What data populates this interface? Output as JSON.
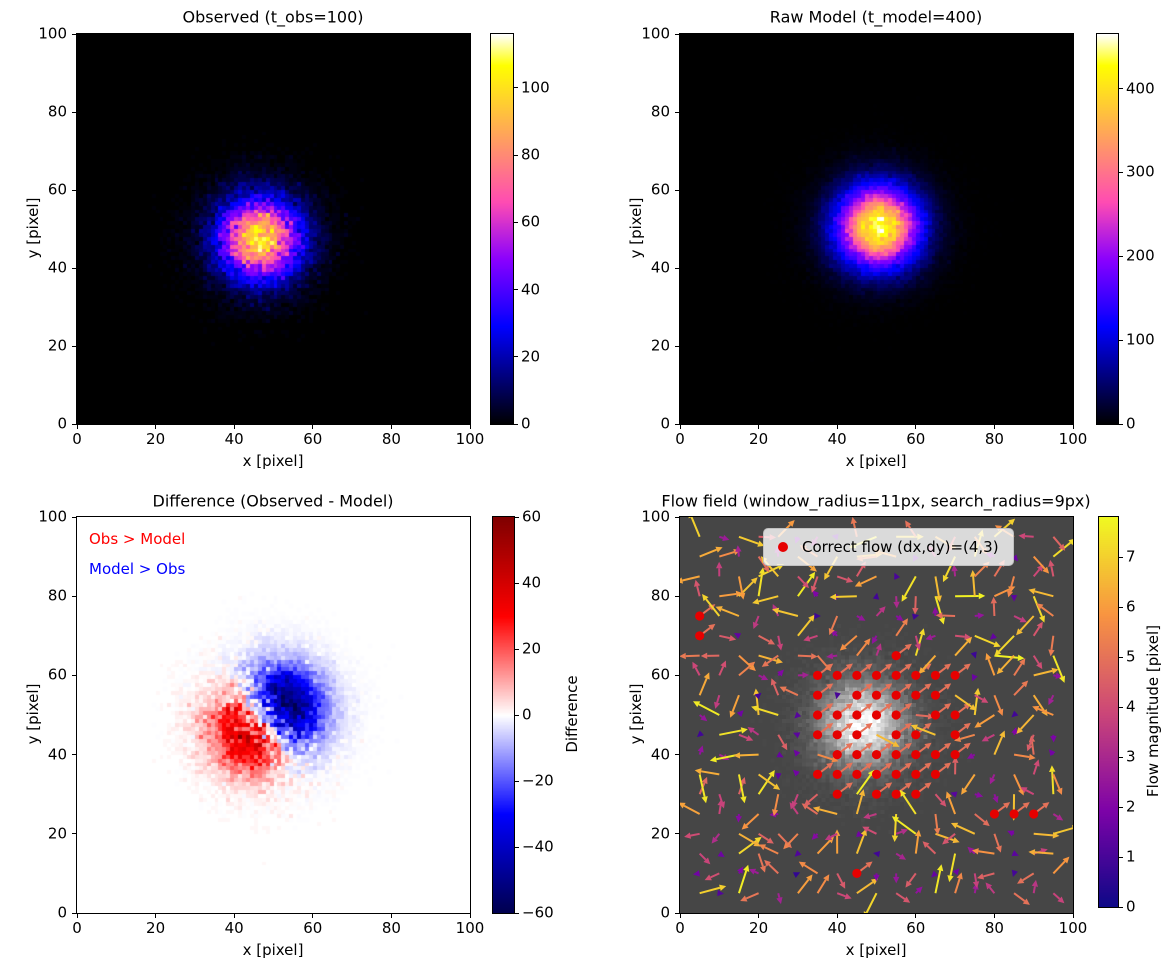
{
  "figure": {
    "background": "#ffffff"
  },
  "chart_data": [
    {
      "id": "observed",
      "type": "heatmap",
      "title": "Observed (t_obs=100)",
      "xlabel": "x [pixel]",
      "ylabel": "y [pixel]",
      "xlim": [
        0,
        100
      ],
      "ylim": [
        0,
        100
      ],
      "xticks": [
        "0",
        "20",
        "40",
        "60",
        "80",
        "100"
      ],
      "xtick_values": [
        0,
        20,
        40,
        60,
        80,
        100
      ],
      "yticks": [
        "0",
        "20",
        "40",
        "60",
        "80",
        "100"
      ],
      "ytick_values": [
        0,
        20,
        40,
        60,
        80,
        100
      ],
      "colormap": "gnuplot2",
      "colorbar": {
        "vmin": 0,
        "vmax": 116,
        "ticks": [
          "0",
          "20",
          "40",
          "60",
          "80",
          "100"
        ],
        "tick_values": [
          0,
          20,
          40,
          60,
          80,
          100
        ],
        "label": ""
      },
      "field": {
        "kind": "poisson_gaussian",
        "center_x": 46,
        "center_y": 47,
        "sigma": 7,
        "peak": 100
      }
    },
    {
      "id": "raw_model",
      "type": "heatmap",
      "title": "Raw Model (t_model=400)",
      "xlabel": "x [pixel]",
      "ylabel": "y [pixel]",
      "xlim": [
        0,
        100
      ],
      "ylim": [
        0,
        100
      ],
      "xticks": [
        "0",
        "20",
        "40",
        "60",
        "80",
        "100"
      ],
      "xtick_values": [
        0,
        20,
        40,
        60,
        80,
        100
      ],
      "yticks": [
        "0",
        "20",
        "40",
        "60",
        "80",
        "100"
      ],
      "ytick_values": [
        0,
        20,
        40,
        60,
        80,
        100
      ],
      "colormap": "gnuplot2",
      "colorbar": {
        "vmin": 0,
        "vmax": 465,
        "ticks": [
          "0",
          "100",
          "200",
          "300",
          "400"
        ],
        "tick_values": [
          0,
          100,
          200,
          300,
          400
        ],
        "label": ""
      },
      "field": {
        "kind": "poisson_gaussian",
        "center_x": 50,
        "center_y": 50,
        "sigma": 7,
        "peak": 450
      }
    },
    {
      "id": "difference",
      "type": "heatmap",
      "title": "Difference (Observed - Model)",
      "xlabel": "x [pixel]",
      "ylabel": "y [pixel]",
      "xlim": [
        0,
        100
      ],
      "ylim": [
        0,
        100
      ],
      "xticks": [
        "0",
        "20",
        "40",
        "60",
        "80",
        "100"
      ],
      "xtick_values": [
        0,
        20,
        40,
        60,
        80,
        100
      ],
      "yticks": [
        "0",
        "20",
        "40",
        "60",
        "80",
        "100"
      ],
      "ytick_values": [
        0,
        20,
        40,
        60,
        80,
        100
      ],
      "colormap": "seismic",
      "colorbar": {
        "vmin": -60,
        "vmax": 60,
        "ticks": [
          "60",
          "40",
          "20",
          "0",
          "−20",
          "−40",
          "−60"
        ],
        "tick_values": [
          60,
          40,
          20,
          0,
          -20,
          -40,
          -60
        ],
        "label": "Difference"
      },
      "annotations": [
        {
          "text": "Obs > Model",
          "color": "#ff0000"
        },
        {
          "text": "Model > Obs",
          "color": "#0000ff"
        }
      ],
      "field": {
        "kind": "scaled_obs_minus_model",
        "obs_center_x": 46,
        "obs_center_y": 47,
        "obs_peak": 100,
        "model_center_x": 50,
        "model_center_y": 50,
        "model_peak": 450,
        "model_scale": 0.25,
        "sigma": 7
      }
    },
    {
      "id": "flow_field",
      "type": "quiver",
      "title": "Flow field (window_radius=11px, search_radius=9px)",
      "xlabel": "x [pixel]",
      "ylabel": "y [pixel]",
      "xlim": [
        0,
        100
      ],
      "ylim": [
        0,
        100
      ],
      "xticks": [
        "0",
        "20",
        "40",
        "60",
        "80",
        "100"
      ],
      "xtick_values": [
        0,
        20,
        40,
        60,
        80,
        100
      ],
      "yticks": [
        "0",
        "20",
        "40",
        "60",
        "80",
        "100"
      ],
      "ytick_values": [
        0,
        20,
        40,
        60,
        80,
        100
      ],
      "colormap": "plasma",
      "colorbar": {
        "vmin": 0,
        "vmax": 7.8,
        "ticks": [
          "0",
          "1",
          "2",
          "3",
          "4",
          "5",
          "6",
          "7"
        ],
        "tick_values": [
          0,
          1,
          2,
          3,
          4,
          5,
          6,
          7
        ],
        "label": "Flow magnitude [pixel]"
      },
      "legend": {
        "label": "Correct flow (dx,dy)=(4,3)",
        "marker_color": "#e60000"
      },
      "background": {
        "kind": "poisson_gaussian_gray",
        "center_x": 46,
        "center_y": 47,
        "sigma": 7,
        "peak": 100,
        "base_gray": "#464646"
      },
      "quiver": {
        "grid_start": 5,
        "grid_step": 5,
        "grid_end": 95,
        "correct_dx": 4,
        "correct_dy": 3,
        "correct_center_x": 51,
        "correct_center_y": 47,
        "correct_radius": 21,
        "correct_prob": 0.85
      },
      "correct_outliers": [
        [
          5,
          75
        ],
        [
          5,
          70
        ],
        [
          45,
          10
        ],
        [
          70,
          60
        ],
        [
          80,
          25
        ],
        [
          85,
          25
        ],
        [
          90,
          25
        ]
      ]
    }
  ]
}
